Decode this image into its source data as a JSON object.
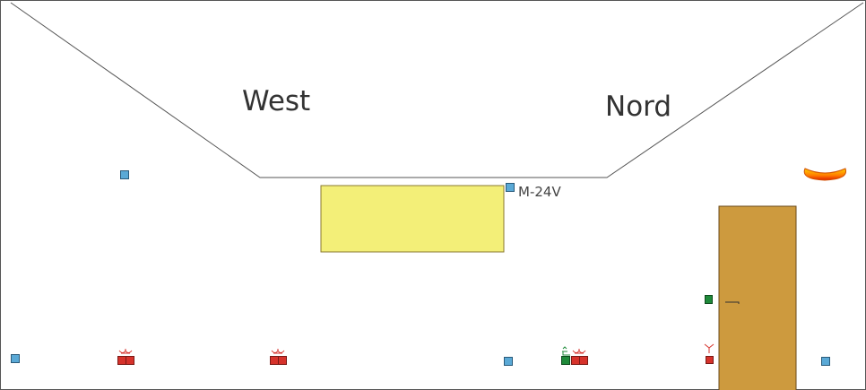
{
  "labels": {
    "west": "West",
    "nord": "Nord",
    "transformer": "M-24V"
  },
  "colors": {
    "yellow_panel": "#f3ef78",
    "door": "#cd9a3e",
    "outlet": "#d6322b",
    "junction_box": "#5aa9d6",
    "switch": "#1f8a3a"
  }
}
